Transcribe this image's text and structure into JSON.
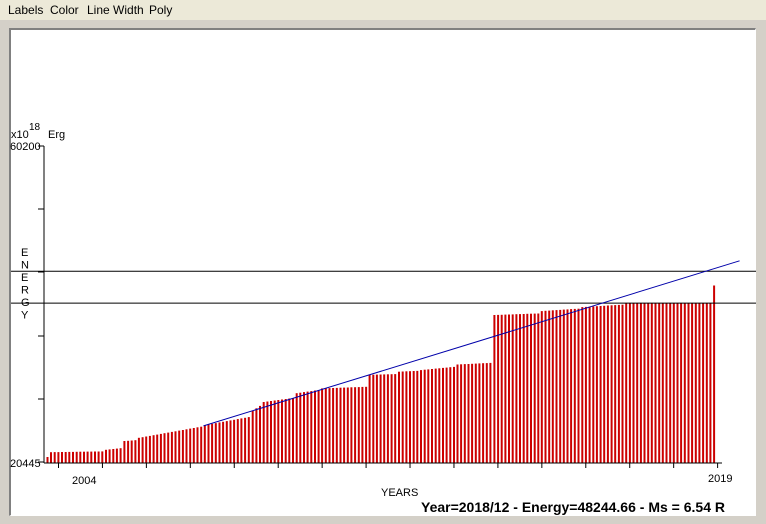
{
  "menu": {
    "labels": "Labels",
    "color": "Color",
    "line_width": "Line Width",
    "poly": "Poly"
  },
  "chart_data": {
    "type": "bar",
    "unit_prefix": "x10",
    "unit_exponent": "18",
    "unit": "Erg",
    "ylabel": "ENERGY",
    "xlabel": "YEARS",
    "ylim": [
      20445,
      60200
    ],
    "ytick_labels": [
      "60200",
      "20445"
    ],
    "xtick_labels": [
      "2004",
      "2019"
    ],
    "xlim": [
      2003.67,
      2019.1
    ],
    "bar_color": "#cc0000",
    "trend_line_color": "#0000aa",
    "trend_line": {
      "x": [
        2007.3,
        2019.5
      ],
      "y": [
        25100,
        45800
      ]
    },
    "horizontal_lines": [
      44500,
      40500
    ],
    "last_bar": {
      "x": 2018.92,
      "y": 42700
    },
    "segments": [
      [
        2003.75,
        2003.79,
        21200,
        21500
      ],
      [
        2003.83,
        2005.0,
        21800,
        21900
      ],
      [
        2005.08,
        2005.42,
        22100,
        22300
      ],
      [
        2005.5,
        2005.75,
        23200,
        23300
      ],
      [
        2005.83,
        2007.25,
        23600,
        25000
      ],
      [
        2007.33,
        2008.33,
        25200,
        26200
      ],
      [
        2008.42,
        2008.58,
        27000,
        27600
      ],
      [
        2008.67,
        2009.33,
        28100,
        28600
      ],
      [
        2009.42,
        2009.92,
        29200,
        29600
      ],
      [
        2010.0,
        2011.0,
        29800,
        30000
      ],
      [
        2011.08,
        2011.67,
        31500,
        31600
      ],
      [
        2011.75,
        2012.17,
        31900,
        32000
      ],
      [
        2012.25,
        2013.0,
        32100,
        32500
      ],
      [
        2013.08,
        2013.83,
        32800,
        33000
      ],
      [
        2013.92,
        2014.92,
        39000,
        39200
      ],
      [
        2015.0,
        2015.83,
        39500,
        39800
      ],
      [
        2015.92,
        2016.83,
        40000,
        40300
      ],
      [
        2016.92,
        2018.83,
        40500,
        40500
      ]
    ]
  },
  "status": {
    "year_label": "Year=",
    "year_value": "2018/12",
    "energy_label": "Energy=",
    "energy_value": "48244.66",
    "ms_label": "Ms = ",
    "ms_value": "6.54 R"
  }
}
